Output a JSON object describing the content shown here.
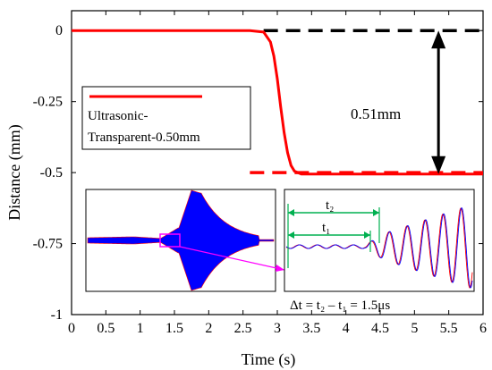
{
  "chart_data": {
    "type": "line",
    "title": "",
    "xlabel": "Time (s)",
    "ylabel": "Distance (mm)",
    "xlim": [
      0,
      6
    ],
    "ylim": [
      -1,
      0.07
    ],
    "x_ticks": [
      0,
      0.5,
      1,
      1.5,
      2,
      2.5,
      3,
      3.5,
      4,
      4.5,
      5,
      5.5,
      6
    ],
    "x_tick_labels": [
      "0",
      "0.5",
      "1",
      "1.5",
      "2",
      "2.5",
      "3",
      "3.5",
      "4",
      "4.5",
      "5",
      "5.5",
      "6"
    ],
    "y_ticks": [
      0,
      -0.25,
      -0.5,
      -0.75,
      -1
    ],
    "y_tick_labels": [
      "0",
      "-0.25",
      "-0.5",
      "-0.75",
      "-1"
    ],
    "series": [
      {
        "name": "Ultrasonic-Transparent-0.50mm",
        "color": "#ff0000",
        "x": [
          0,
          2.6,
          2.8,
          2.9,
          2.95,
          3.0,
          3.05,
          3.1,
          3.15,
          3.2,
          3.25,
          3.35,
          3.5,
          6.0
        ],
        "y": [
          0,
          0,
          -0.005,
          -0.04,
          -0.09,
          -0.17,
          -0.27,
          -0.36,
          -0.43,
          -0.475,
          -0.495,
          -0.505,
          -0.505,
          -0.505
        ]
      }
    ],
    "reference_lines": [
      {
        "color": "#000000",
        "style": "dashed",
        "y": 0,
        "x_from": 2.8,
        "x_to": 6
      },
      {
        "color": "#ff0000",
        "style": "dashed",
        "y": -0.5,
        "x_from": 2.6,
        "x_to": 6
      }
    ],
    "annotations": {
      "difference_label": "0.51mm",
      "difference_arrow_x": 5.35,
      "inset_equation": "Δt = t₂ – t₁ = 1.5μs",
      "t2_label": "t₂",
      "t1_label": "t₁"
    },
    "legend": {
      "position": "upper-left",
      "label_line1": "Ultrasonic-",
      "label_line2": "Transparent-0.50mm"
    }
  },
  "colors": {
    "curve": "#ff0000",
    "waveform_blue": "#0000ff",
    "marker_magenta": "#ff00ff",
    "marker_green": "#00b050"
  }
}
